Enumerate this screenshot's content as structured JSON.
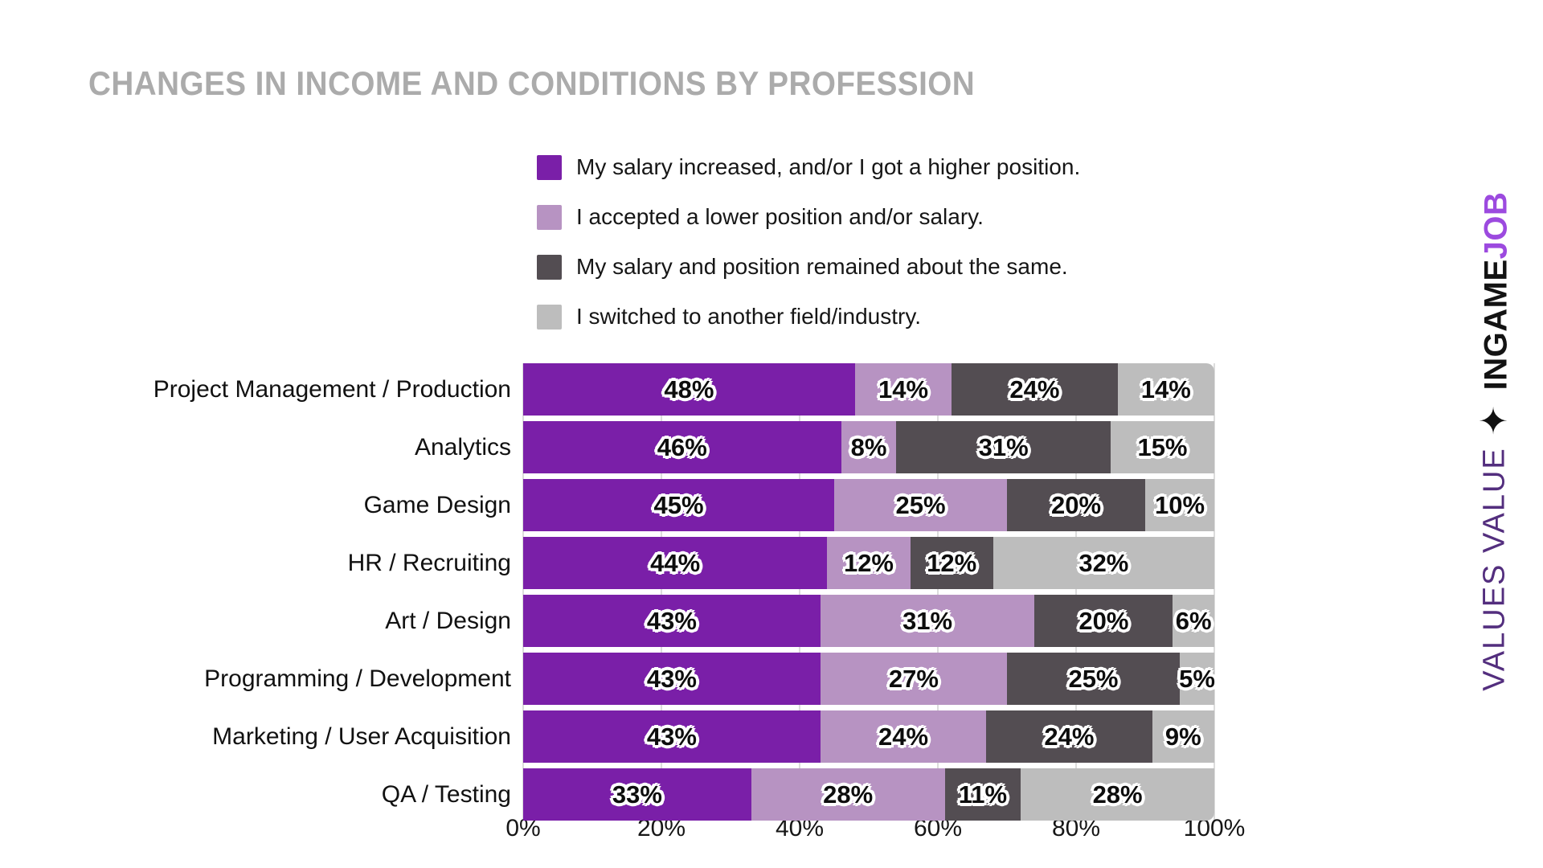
{
  "brand": {
    "ingame": "INGAME",
    "job": "JOB",
    "star": "✦",
    "values_value": "VALUES VALUE"
  },
  "chart_data": {
    "type": "bar",
    "stacked": true,
    "orientation": "horizontal",
    "title": "CHANGES IN INCOME AND CONDITIONS BY PROFESSION",
    "legend_position": "top",
    "grid": true,
    "xlim": [
      0,
      100
    ],
    "x_ticks": [
      "0%",
      "20%",
      "40%",
      "60%",
      "80%",
      "100%"
    ],
    "categories": [
      "Project Management / Production",
      "Analytics",
      "Game Design",
      "HR / Recruiting",
      "Art / Design",
      "Programming / Development",
      "Marketing / User Acquisition",
      "QA / Testing"
    ],
    "series": [
      {
        "name": "My salary increased, and/or I got a higher position.",
        "color": "#7A1FA8",
        "values": [
          48,
          46,
          45,
          44,
          43,
          43,
          43,
          33
        ]
      },
      {
        "name": "I accepted a lower position and/or salary.",
        "color": "#B793C2",
        "values": [
          14,
          8,
          25,
          12,
          31,
          27,
          24,
          28
        ]
      },
      {
        "name": "My salary and position remained about the same.",
        "color": "#534D52",
        "values": [
          24,
          31,
          20,
          12,
          20,
          25,
          24,
          11
        ]
      },
      {
        "name": "I switched to another field/industry.",
        "color": "#BDBDBD",
        "values": [
          14,
          15,
          10,
          32,
          6,
          5,
          9,
          28
        ]
      }
    ],
    "value_suffix": "%"
  }
}
